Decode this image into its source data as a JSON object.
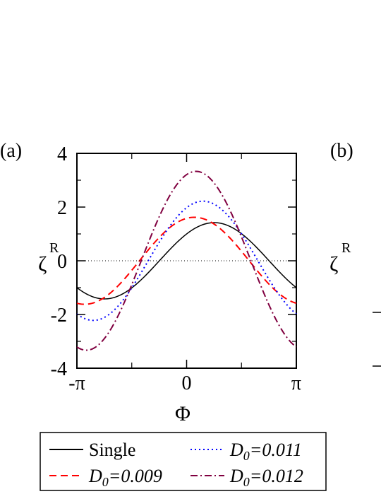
{
  "chart_data": {
    "type": "line",
    "panel_labels": [
      "(a)",
      "(b)"
    ],
    "xlabel": "Φ",
    "ylabel": "ζ",
    "ylabel_sup": "R",
    "xlim": [
      -3.14159,
      3.14159
    ],
    "ylim": [
      -4,
      4
    ],
    "x_ticks": [
      {
        "value": -3.14159,
        "label": "-π"
      },
      {
        "value": 0,
        "label": "0"
      },
      {
        "value": 3.14159,
        "label": "π"
      }
    ],
    "y_ticks": [
      {
        "value": 4,
        "label": "4"
      },
      {
        "value": 2,
        "label": "2"
      },
      {
        "value": 0,
        "label": "0"
      },
      {
        "value": -2,
        "label": "-2"
      },
      {
        "value": -4,
        "label": "-4"
      }
    ],
    "grid": false,
    "legend_position": "bottom",
    "zero_line": true,
    "series": [
      {
        "name": "Single",
        "color": "#000000",
        "dash": "solid",
        "amplitude": 1.42,
        "phase": 0.78
      },
      {
        "name": "D0=0.009",
        "color": "#ff0000",
        "dash": "dash",
        "amplitude": 1.62,
        "phase": 1.35
      },
      {
        "name": "D0=0.011",
        "color": "#0000ff",
        "dash": "dot",
        "amplitude": 2.22,
        "phase": 1.1
      },
      {
        "name": "D0=0.012",
        "color": "#800040",
        "dash": "dashdot",
        "amplitude": 3.33,
        "phase": 1.3
      }
    ],
    "legend": [
      {
        "prefix": "",
        "main": "Single",
        "sub": "",
        "value": "",
        "style": "solid",
        "color": "#000000"
      },
      {
        "prefix": "D",
        "main": "",
        "sub": "0",
        "value": "=0.011",
        "style": "dot",
        "color": "#0000ff"
      },
      {
        "prefix": "D",
        "main": "",
        "sub": "0",
        "value": "=0.009",
        "style": "dash",
        "color": "#ff0000"
      },
      {
        "prefix": "D",
        "main": "",
        "sub": "0",
        "value": "=0.012",
        "style": "dashdot",
        "color": "#800040"
      }
    ]
  }
}
